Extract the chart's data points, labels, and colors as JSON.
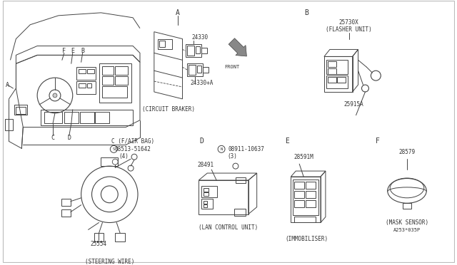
{
  "background_color": "#ffffff",
  "line_color": "#444444",
  "text_color": "#333333",
  "fig_w": 6.4,
  "fig_h": 3.72,
  "dpi": 100,
  "parts": {
    "circuit_breaker": {
      "number": "24330",
      "number2": "24330+A",
      "label": "(CIRCUIT BRAKER)"
    },
    "flasher_unit": {
      "number": "25730X",
      "sublabel": "(FLASHER UNIT)",
      "number2": "25915A"
    },
    "steering_wire": {
      "number": "25554",
      "label": "(STEERING WIRE)",
      "screw": "08513-51642",
      "screw_label": "C (F/AIR BAG)",
      "screw_qty": "(4)"
    },
    "lan_control": {
      "number": "28491",
      "label": "(LAN CONTROL UNIT)",
      "bolt": "08911-10637",
      "bolt_qty": "(3)"
    },
    "immobiliser": {
      "number": "28591M",
      "label": "(IMMOBILISER)"
    },
    "mask_sensor": {
      "number": "28579",
      "label": "(MASK SENSOR)",
      "note": "A253*035P"
    }
  }
}
